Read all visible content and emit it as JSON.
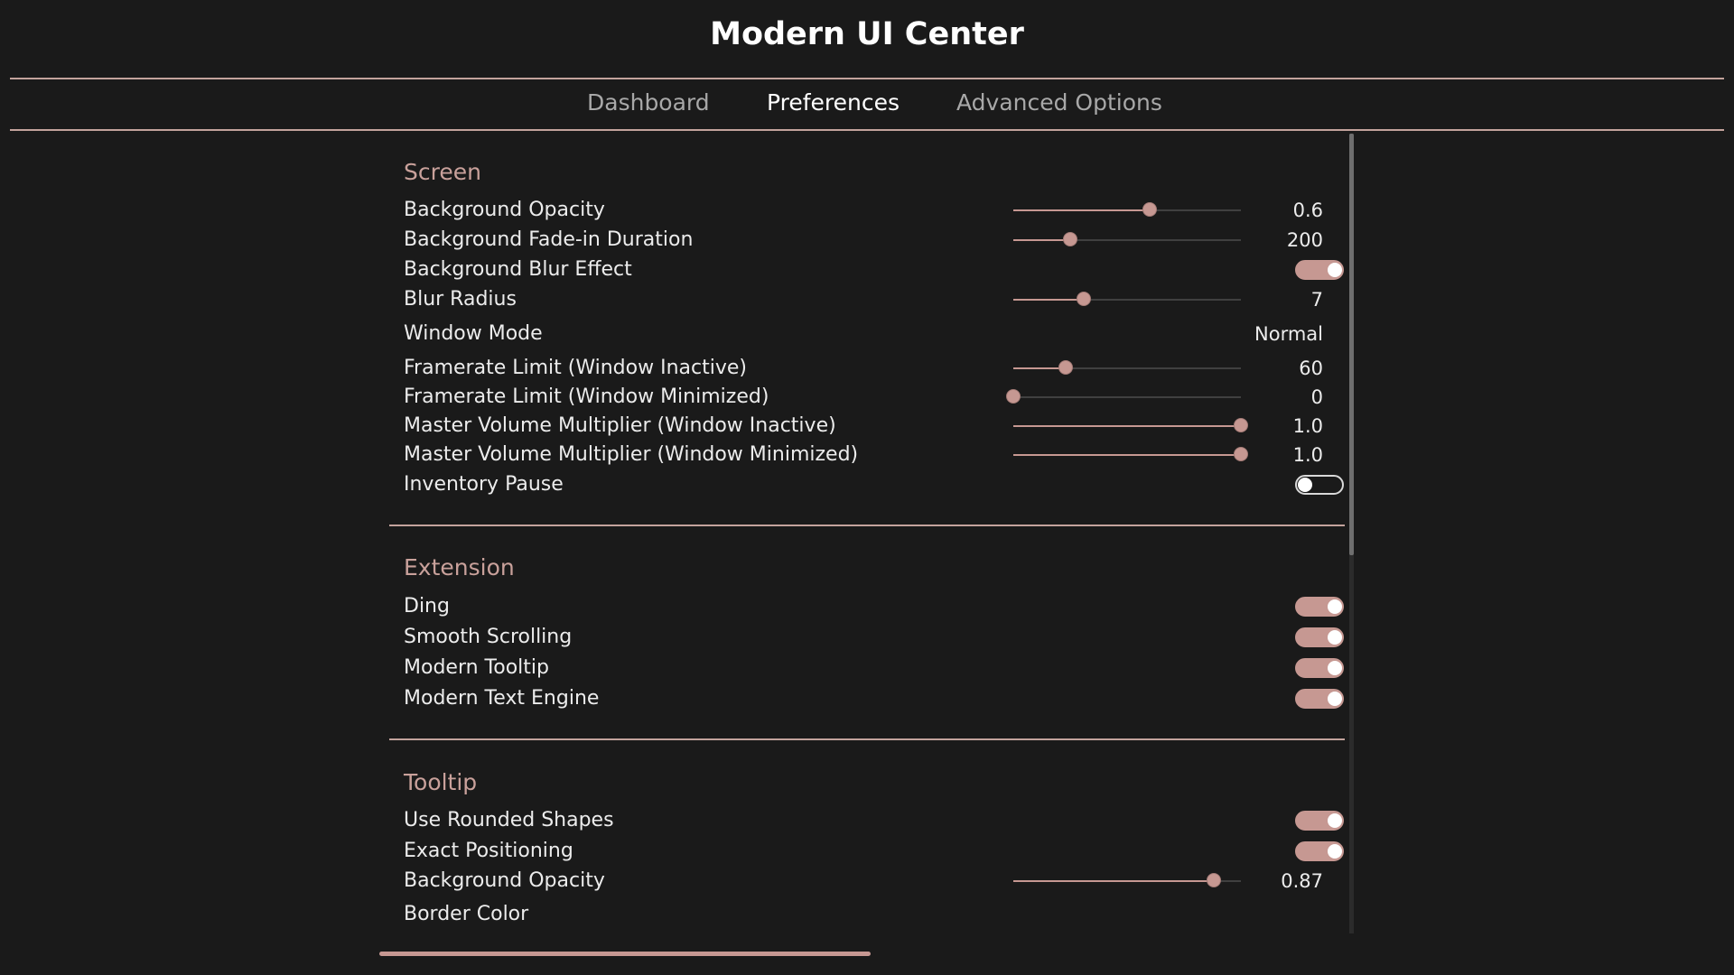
{
  "app": {
    "title": "Modern UI Center"
  },
  "tabs": [
    {
      "label": "Dashboard",
      "active": false
    },
    {
      "label": "Preferences",
      "active": true
    },
    {
      "label": "Advanced Options",
      "active": false
    }
  ],
  "colors": {
    "accent": "#c69892",
    "background": "#1a1a1a",
    "section_title": "#c9a19b",
    "divider": "#c3a39c"
  },
  "sections": [
    {
      "title": "Screen",
      "rows": [
        {
          "label": "Background Opacity",
          "type": "slider",
          "value": "0.6",
          "fraction": 0.6
        },
        {
          "label": "Background Fade-in Duration",
          "type": "slider",
          "value": "200",
          "fraction": 0.25
        },
        {
          "label": "Background Blur Effect",
          "type": "toggle",
          "on": true
        },
        {
          "label": "Blur Radius",
          "type": "slider",
          "value": "7",
          "fraction": 0.31
        },
        {
          "label": "Window Mode",
          "type": "text",
          "value": "Normal"
        },
        {
          "label": "Framerate Limit (Window Inactive)",
          "type": "slider",
          "value": "60",
          "fraction": 0.23
        },
        {
          "label": "Framerate Limit (Window Minimized)",
          "type": "slider",
          "value": "0",
          "fraction": 0.0
        },
        {
          "label": "Master Volume Multiplier (Window Inactive)",
          "type": "slider",
          "value": "1.0",
          "fraction": 1.0
        },
        {
          "label": "Master Volume Multiplier (Window Minimized)",
          "type": "slider",
          "value": "1.0",
          "fraction": 1.0
        },
        {
          "label": "Inventory Pause",
          "type": "toggle",
          "on": false
        }
      ]
    },
    {
      "title": "Extension",
      "rows": [
        {
          "label": "Ding",
          "type": "toggle",
          "on": true
        },
        {
          "label": "Smooth Scrolling",
          "type": "toggle",
          "on": true
        },
        {
          "label": "Modern Tooltip",
          "type": "toggle",
          "on": true
        },
        {
          "label": "Modern Text Engine",
          "type": "toggle",
          "on": true
        }
      ]
    },
    {
      "title": "Tooltip",
      "rows": [
        {
          "label": "Use Rounded Shapes",
          "type": "toggle",
          "on": true
        },
        {
          "label": "Exact Positioning",
          "type": "toggle",
          "on": true
        },
        {
          "label": "Background Opacity",
          "type": "slider",
          "value": "0.87",
          "fraction": 0.88
        },
        {
          "label": "Border Color",
          "type": "text",
          "value": ""
        }
      ]
    }
  ]
}
